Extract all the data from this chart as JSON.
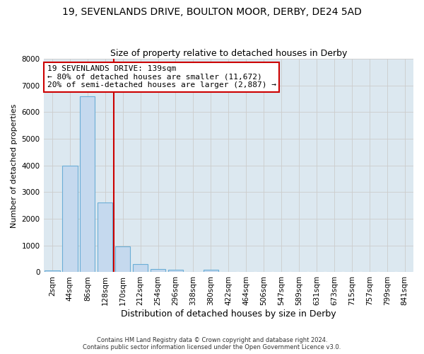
{
  "title": "19, SEVENLANDS DRIVE, BOULTON MOOR, DERBY, DE24 5AD",
  "subtitle": "Size of property relative to detached houses in Derby",
  "xlabel": "Distribution of detached houses by size in Derby",
  "ylabel": "Number of detached properties",
  "categories": [
    "2sqm",
    "44sqm",
    "86sqm",
    "128sqm",
    "170sqm",
    "212sqm",
    "254sqm",
    "296sqm",
    "338sqm",
    "380sqm",
    "422sqm",
    "464sqm",
    "506sqm",
    "547sqm",
    "589sqm",
    "631sqm",
    "673sqm",
    "715sqm",
    "757sqm",
    "799sqm",
    "841sqm"
  ],
  "values": [
    70,
    4000,
    6600,
    2620,
    960,
    310,
    120,
    90,
    0,
    80,
    0,
    0,
    0,
    0,
    0,
    0,
    0,
    0,
    0,
    0,
    0
  ],
  "bar_color": "#c5d9ee",
  "bar_edgecolor": "#6baed6",
  "vline_x_index": 3,
  "vline_color": "#cc0000",
  "annotation_line1": "19 SEVENLANDS DRIVE: 139sqm",
  "annotation_line2": "← 80% of detached houses are smaller (11,672)",
  "annotation_line3": "20% of semi-detached houses are larger (2,887) →",
  "annotation_box_color": "#ffffff",
  "annotation_box_edgecolor": "#cc0000",
  "ylim": [
    0,
    8000
  ],
  "yticks": [
    0,
    1000,
    2000,
    3000,
    4000,
    5000,
    6000,
    7000,
    8000
  ],
  "grid_color": "#cccccc",
  "background_color": "#dce8f0",
  "footer": "Contains HM Land Registry data © Crown copyright and database right 2024.\nContains public sector information licensed under the Open Government Licence v3.0.",
  "title_fontsize": 10,
  "subtitle_fontsize": 9,
  "xlabel_fontsize": 9,
  "ylabel_fontsize": 8,
  "tick_fontsize": 7.5,
  "annotation_fontsize": 8
}
